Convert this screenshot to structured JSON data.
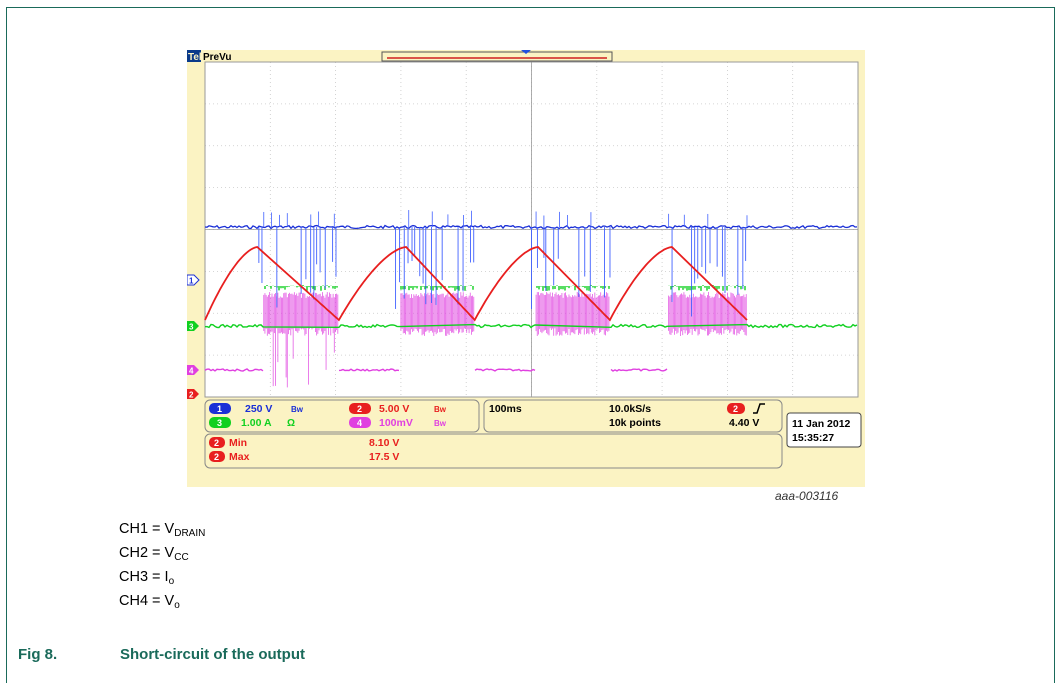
{
  "chart_data": {
    "type": "line",
    "title": "",
    "brand": "Tek",
    "mode": "PreVu",
    "record_id": "aaa-003116",
    "channels": [
      {
        "id": "1",
        "scale": "250 V",
        "color": "#1a2fd6"
      },
      {
        "id": "2",
        "scale": "5.00 V",
        "color": "#e81f1f"
      },
      {
        "id": "3",
        "scale": "1.00 A",
        "unit_symbol": "Ω",
        "color": "#10d020"
      },
      {
        "id": "4",
        "scale": "100mV",
        "color": "#e040e0"
      }
    ],
    "timebase": "100ms",
    "sample_rate": "10.0kS/s",
    "record_length": "10k points",
    "trigger": {
      "channel": "2",
      "level": "4.40 V"
    },
    "date": "11 Jan 2012",
    "time": "15:35:27",
    "measurements": [
      {
        "channel": "2",
        "name": "Min",
        "value": "8.10 V"
      },
      {
        "channel": "2",
        "name": "Max",
        "value": "17.5 V"
      }
    ],
    "vcc_ramp": {
      "channel": "2",
      "unit": "V",
      "min": 8.1,
      "max": 17.5,
      "cycles": [
        {
          "rise_start_div": 0.0,
          "peak_div": 0.8,
          "fall_end_div": 2.05
        },
        {
          "rise_start_div": 2.05,
          "peak_div": 3.08,
          "fall_end_div": 4.13
        },
        {
          "rise_start_div": 4.13,
          "peak_div": 5.1,
          "fall_end_div": 6.2
        },
        {
          "rise_start_div": 6.2,
          "peak_div": 7.15,
          "fall_end_div": 8.3
        }
      ]
    },
    "switching_windows_div": [
      [
        0.9,
        2.05
      ],
      [
        3.0,
        4.13
      ],
      [
        5.07,
        6.2
      ],
      [
        7.1,
        8.3
      ]
    ],
    "grid": true,
    "divisions": {
      "x": 10,
      "y": 8
    }
  },
  "notes": {
    "ch1": {
      "prefix": "CH1 = V",
      "sub": "DRAIN"
    },
    "ch2": {
      "prefix": "CH2 = V",
      "sub": "CC"
    },
    "ch3": {
      "prefix": "CH3 = I",
      "sub": "o"
    },
    "ch4": {
      "prefix": "CH4 = V",
      "sub": "o"
    }
  },
  "caption": {
    "number": "Fig 8.",
    "title": "Short-circuit of the output"
  }
}
